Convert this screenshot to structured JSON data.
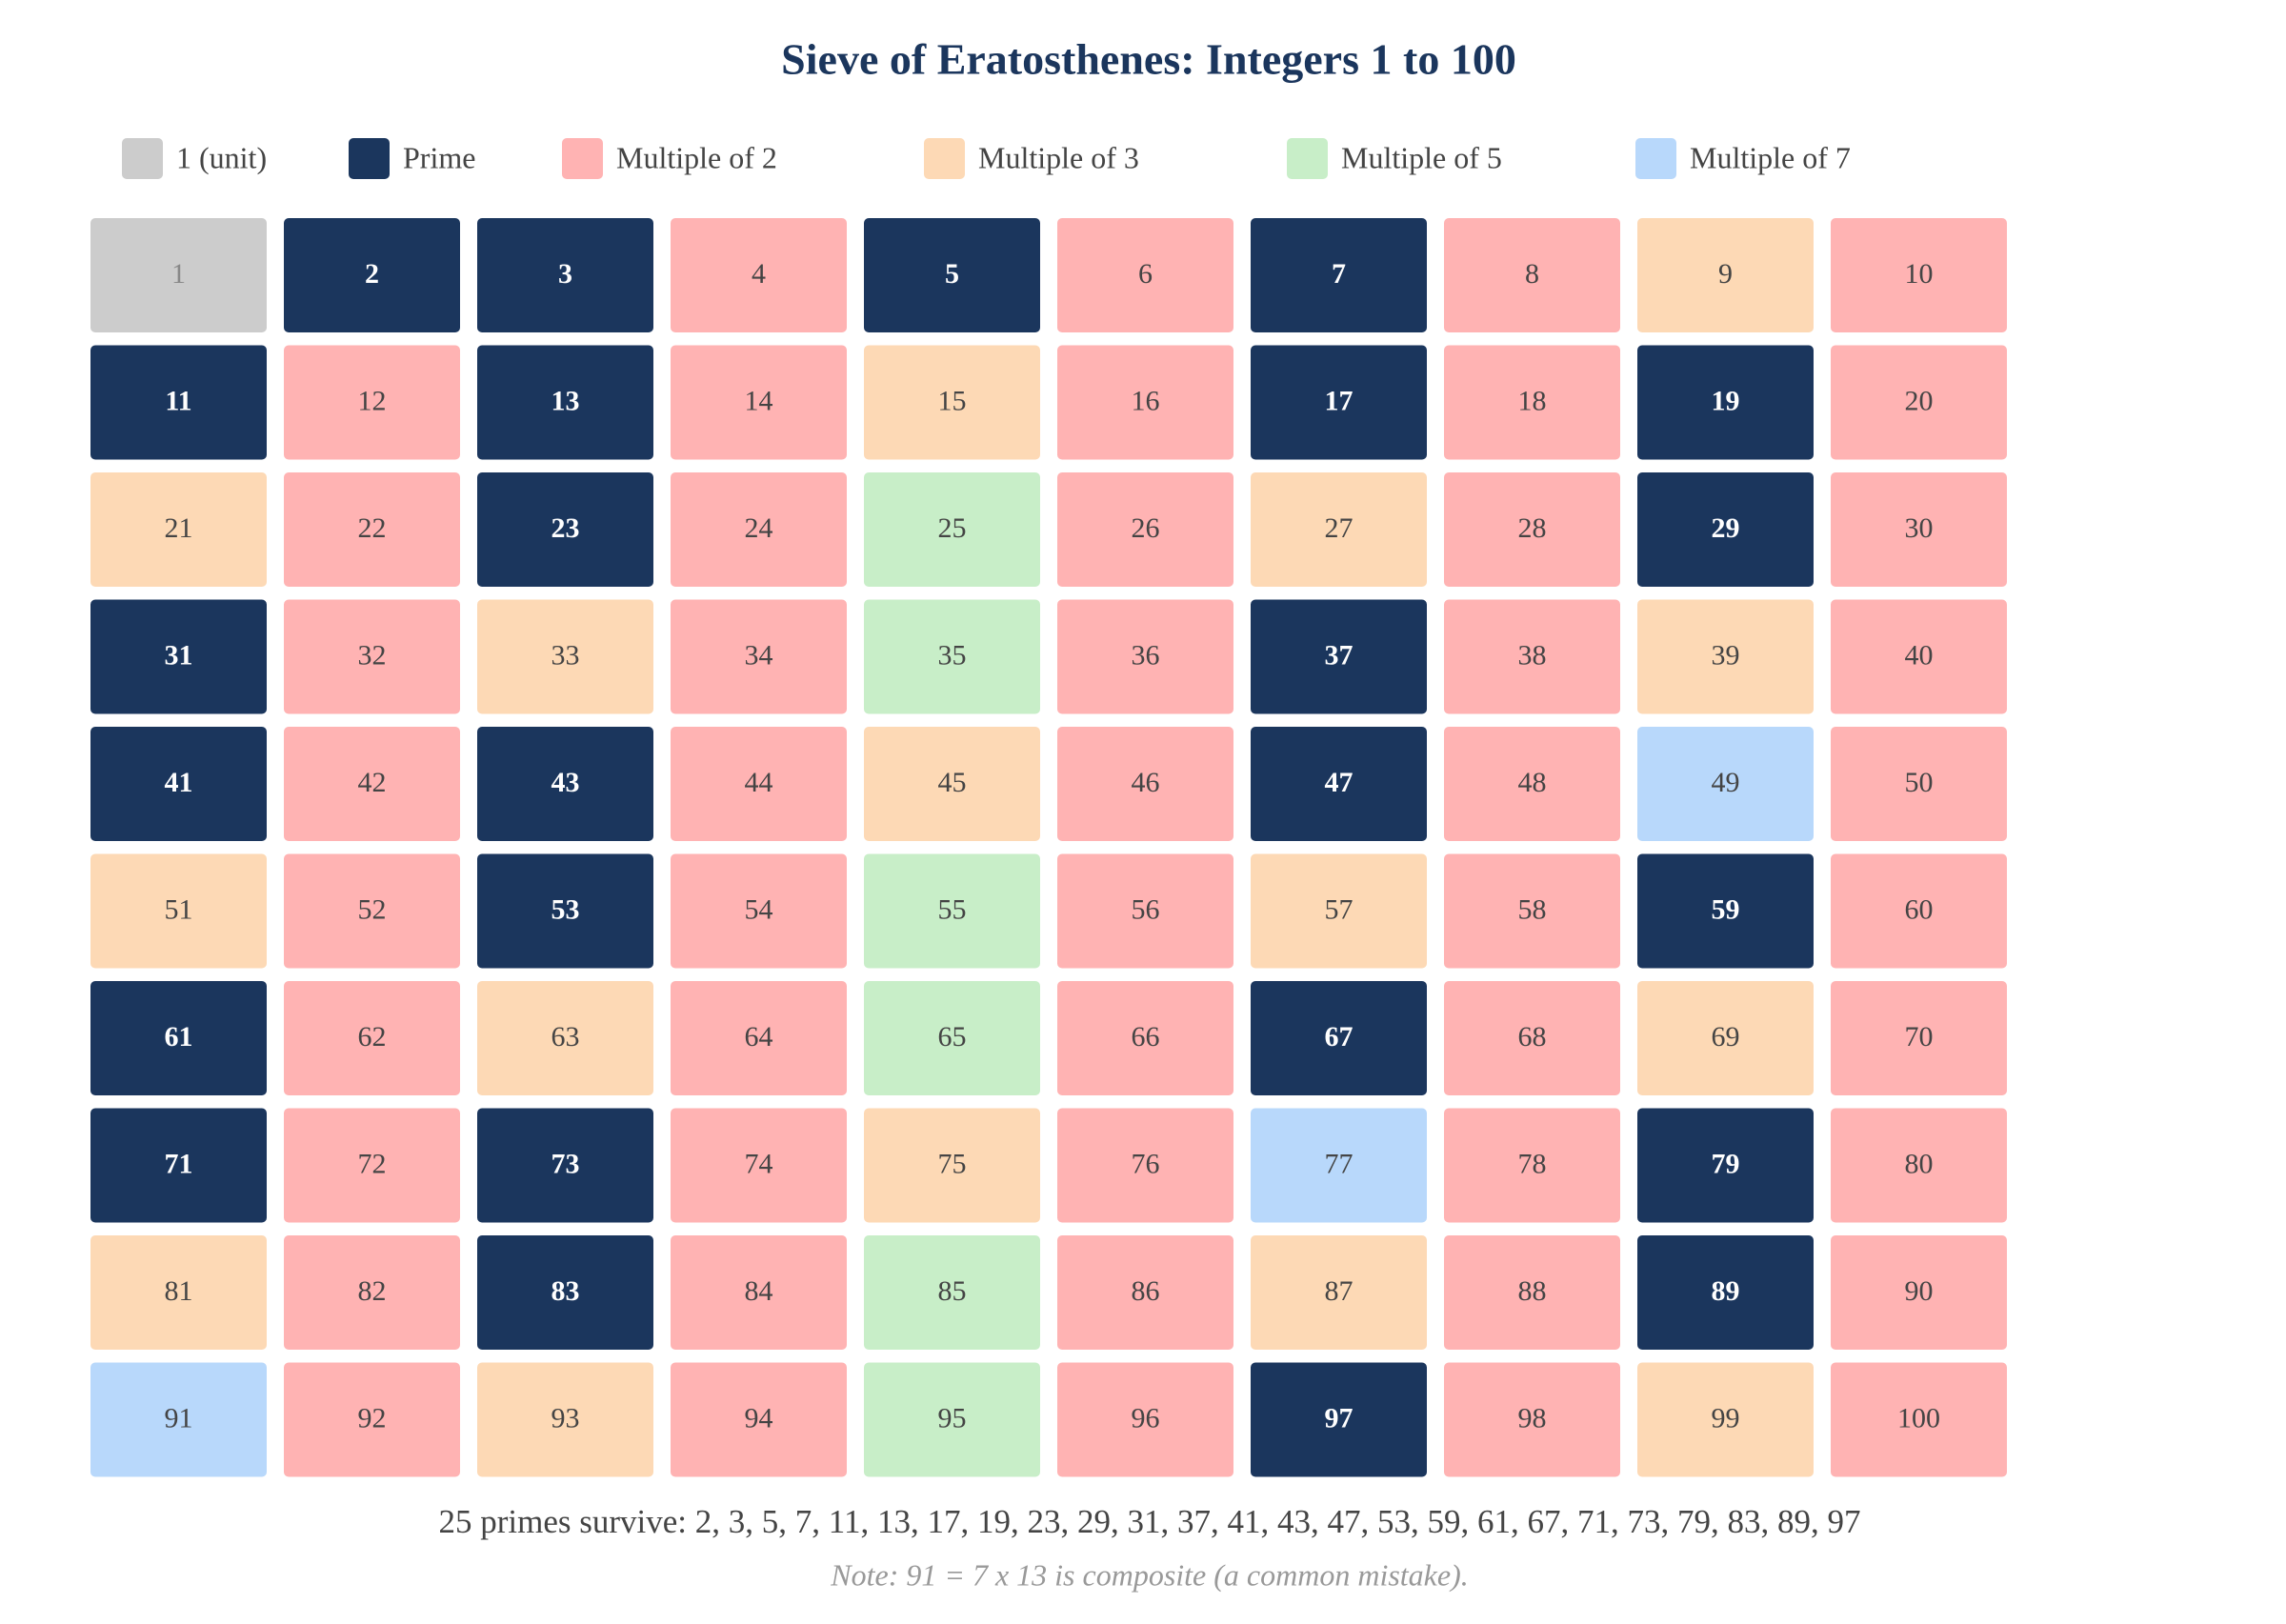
{
  "header": {
    "title": "Sieve of Eratosthenes: Integers 1 to 100"
  },
  "legend": [
    {
      "label": "1 (unit)",
      "color": "#cccccc"
    },
    {
      "label": "Prime",
      "color": "#1b365d"
    },
    {
      "label": "Multiple of 2",
      "color": "#ffb3b3"
    },
    {
      "label": "Multiple of 3",
      "color": "#fdd9b5"
    },
    {
      "label": "Multiple of 5",
      "color": "#c8eec8"
    },
    {
      "label": "Multiple of 7",
      "color": "#b8d8fb"
    }
  ],
  "cells": [
    {
      "text": "1",
      "group": 0
    },
    {
      "text": "2",
      "group": 1
    },
    {
      "text": "3",
      "group": 1
    },
    {
      "text": "4",
      "group": 2
    },
    {
      "text": "5",
      "group": 1
    },
    {
      "text": "6",
      "group": 2
    },
    {
      "text": "7",
      "group": 1
    },
    {
      "text": "8",
      "group": 2
    },
    {
      "text": "9",
      "group": 3
    },
    {
      "text": "10",
      "group": 2
    },
    {
      "text": "11",
      "group": 1
    },
    {
      "text": "12",
      "group": 2
    },
    {
      "text": "13",
      "group": 1
    },
    {
      "text": "14",
      "group": 2
    },
    {
      "text": "15",
      "group": 3
    },
    {
      "text": "16",
      "group": 2
    },
    {
      "text": "17",
      "group": 1
    },
    {
      "text": "18",
      "group": 2
    },
    {
      "text": "19",
      "group": 1
    },
    {
      "text": "20",
      "group": 2
    },
    {
      "text": "21",
      "group": 3
    },
    {
      "text": "22",
      "group": 2
    },
    {
      "text": "23",
      "group": 1
    },
    {
      "text": "24",
      "group": 2
    },
    {
      "text": "25",
      "group": 4
    },
    {
      "text": "26",
      "group": 2
    },
    {
      "text": "27",
      "group": 3
    },
    {
      "text": "28",
      "group": 2
    },
    {
      "text": "29",
      "group": 1
    },
    {
      "text": "30",
      "group": 2
    },
    {
      "text": "31",
      "group": 1
    },
    {
      "text": "32",
      "group": 2
    },
    {
      "text": "33",
      "group": 3
    },
    {
      "text": "34",
      "group": 2
    },
    {
      "text": "35",
      "group": 4
    },
    {
      "text": "36",
      "group": 2
    },
    {
      "text": "37",
      "group": 1
    },
    {
      "text": "38",
      "group": 2
    },
    {
      "text": "39",
      "group": 3
    },
    {
      "text": "40",
      "group": 2
    },
    {
      "text": "41",
      "group": 1
    },
    {
      "text": "42",
      "group": 2
    },
    {
      "text": "43",
      "group": 1
    },
    {
      "text": "44",
      "group": 2
    },
    {
      "text": "45",
      "group": 3
    },
    {
      "text": "46",
      "group": 2
    },
    {
      "text": "47",
      "group": 1
    },
    {
      "text": "48",
      "group": 2
    },
    {
      "text": "49",
      "group": 5
    },
    {
      "text": "50",
      "group": 2
    },
    {
      "text": "51",
      "group": 3
    },
    {
      "text": "52",
      "group": 2
    },
    {
      "text": "53",
      "group": 1
    },
    {
      "text": "54",
      "group": 2
    },
    {
      "text": "55",
      "group": 4
    },
    {
      "text": "56",
      "group": 2
    },
    {
      "text": "57",
      "group": 3
    },
    {
      "text": "58",
      "group": 2
    },
    {
      "text": "59",
      "group": 1
    },
    {
      "text": "60",
      "group": 2
    },
    {
      "text": "61",
      "group": 1
    },
    {
      "text": "62",
      "group": 2
    },
    {
      "text": "63",
      "group": 3
    },
    {
      "text": "64",
      "group": 2
    },
    {
      "text": "65",
      "group": 4
    },
    {
      "text": "66",
      "group": 2
    },
    {
      "text": "67",
      "group": 1
    },
    {
      "text": "68",
      "group": 2
    },
    {
      "text": "69",
      "group": 3
    },
    {
      "text": "70",
      "group": 2
    },
    {
      "text": "71",
      "group": 1
    },
    {
      "text": "72",
      "group": 2
    },
    {
      "text": "73",
      "group": 1
    },
    {
      "text": "74",
      "group": 2
    },
    {
      "text": "75",
      "group": 3
    },
    {
      "text": "76",
      "group": 2
    },
    {
      "text": "77",
      "group": 5
    },
    {
      "text": "78",
      "group": 2
    },
    {
      "text": "79",
      "group": 1
    },
    {
      "text": "80",
      "group": 2
    },
    {
      "text": "81",
      "group": 3
    },
    {
      "text": "82",
      "group": 2
    },
    {
      "text": "83",
      "group": 1
    },
    {
      "text": "84",
      "group": 2
    },
    {
      "text": "85",
      "group": 4
    },
    {
      "text": "86",
      "group": 2
    },
    {
      "text": "87",
      "group": 3
    },
    {
      "text": "88",
      "group": 2
    },
    {
      "text": "89",
      "group": 1
    },
    {
      "text": "90",
      "group": 2
    },
    {
      "text": "91",
      "group": 5
    },
    {
      "text": "92",
      "group": 2
    },
    {
      "text": "93",
      "group": 3
    },
    {
      "text": "94",
      "group": 2
    },
    {
      "text": "95",
      "group": 4
    },
    {
      "text": "96",
      "group": 2
    },
    {
      "text": "97",
      "group": 1
    },
    {
      "text": "98",
      "group": 2
    },
    {
      "text": "99",
      "group": 3
    },
    {
      "text": "100",
      "group": 2
    }
  ],
  "footer": {
    "summary": "25 primes survive: 2, 3, 5, 7, 11, 13, 17, 19, 23, 29, 31, 37, 41, 43, 47, 53, 59, 61, 67, 71, 73, 79, 83, 89, 97",
    "note": "Note: 91 = 7 x 13 is composite (a common mistake)."
  }
}
